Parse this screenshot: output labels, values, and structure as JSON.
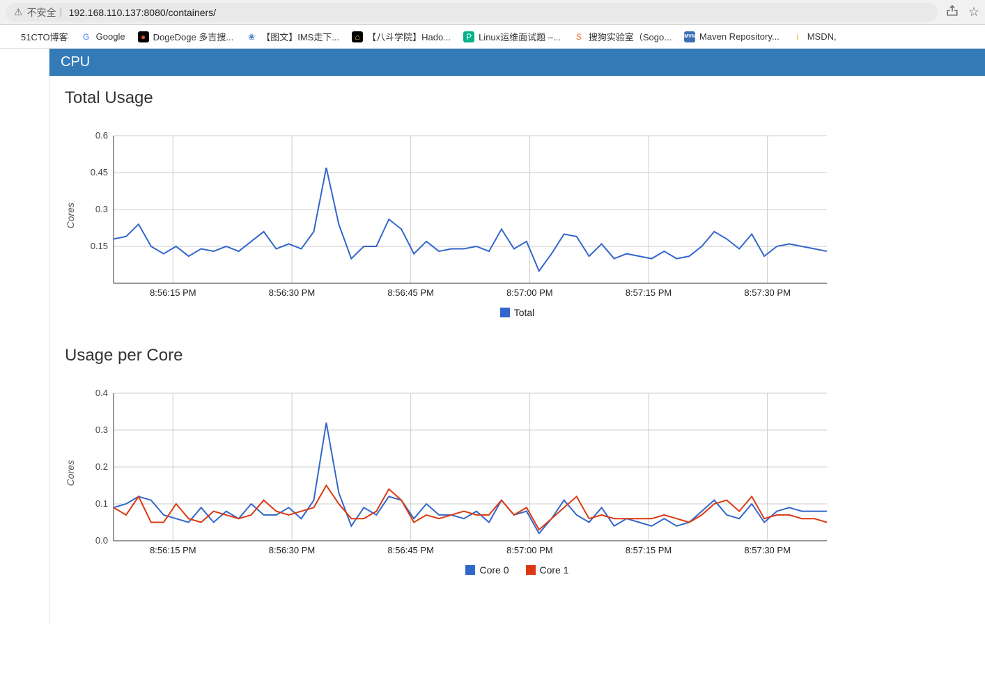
{
  "url_bar": {
    "warning_icon": "⚠",
    "insecure_label": "不安全",
    "url": "192.168.110.137:8080/containers/",
    "share_icon": "⇪",
    "star_icon": "☆"
  },
  "bookmarks": [
    {
      "label": "51CTO博客",
      "favicon_text": "",
      "favicon_bg": "",
      "favicon_color": "#333"
    },
    {
      "label": "Google",
      "favicon_text": "G",
      "favicon_bg": "#fff",
      "favicon_color": "#4285f4"
    },
    {
      "label": "DogeDoge 多吉搜...",
      "favicon_text": "●",
      "favicon_bg": "#000",
      "favicon_color": "#d94f2a"
    },
    {
      "label": "【图文】IMS走下...",
      "favicon_text": "❀",
      "favicon_bg": "#fff",
      "favicon_color": "#3b7bd6"
    },
    {
      "label": "【八斗学院】Hado...",
      "favicon_text": "⌂",
      "favicon_bg": "#000",
      "favicon_color": "#e6c14c"
    },
    {
      "label": "Linux运维面试题 –...",
      "favicon_text": "P",
      "favicon_bg": "#00b388",
      "favicon_color": "#fff"
    },
    {
      "label": "搜狗实验室（Sogo...",
      "favicon_text": "S",
      "favicon_bg": "#fff",
      "favicon_color": "#fd6c21"
    },
    {
      "label": "Maven Repository...",
      "favicon_text": "MVN",
      "favicon_bg": "#3b6fb6",
      "favicon_color": "#fff"
    },
    {
      "label": "MSDN,",
      "favicon_text": "i",
      "favicon_bg": "#fff",
      "favicon_color": "#f5a623"
    }
  ],
  "section_header": "CPU",
  "chart1": {
    "title": "Total Usage",
    "type": "line",
    "y_label": "Cores",
    "ylim": [
      0,
      0.6
    ],
    "yticks": [
      0.15,
      0.3,
      0.45,
      0.6
    ],
    "xticks": [
      "8:56:15 PM",
      "8:56:30 PM",
      "8:56:45 PM",
      "8:57:00 PM",
      "8:57:15 PM",
      "8:57:30 PM"
    ],
    "grid_color": "#cccccc",
    "axis_color": "#333333",
    "background_color": "#ffffff",
    "tick_fontsize": 13,
    "line_width": 2,
    "series": [
      {
        "name": "Total",
        "color": "#3366cc",
        "values": [
          0.18,
          0.19,
          0.24,
          0.15,
          0.12,
          0.15,
          0.11,
          0.14,
          0.13,
          0.15,
          0.13,
          0.17,
          0.21,
          0.14,
          0.16,
          0.14,
          0.21,
          0.47,
          0.24,
          0.1,
          0.15,
          0.15,
          0.26,
          0.22,
          0.12,
          0.17,
          0.13,
          0.14,
          0.14,
          0.15,
          0.13,
          0.22,
          0.14,
          0.17,
          0.05,
          0.12,
          0.2,
          0.19,
          0.11,
          0.16,
          0.1,
          0.12,
          0.11,
          0.1,
          0.13,
          0.1,
          0.11,
          0.15,
          0.21,
          0.18,
          0.14,
          0.2,
          0.11,
          0.15,
          0.16,
          0.15,
          0.14,
          0.13
        ]
      }
    ],
    "legend": [
      {
        "label": "Total",
        "color": "#3366cc"
      }
    ]
  },
  "chart2": {
    "title": "Usage per Core",
    "type": "line",
    "y_label": "Cores",
    "ylim": [
      0.0,
      0.4
    ],
    "yticks": [
      0.0,
      0.1,
      0.2,
      0.3,
      0.4
    ],
    "xticks": [
      "8:56:15 PM",
      "8:56:30 PM",
      "8:56:45 PM",
      "8:57:00 PM",
      "8:57:15 PM",
      "8:57:30 PM"
    ],
    "grid_color": "#cccccc",
    "axis_color": "#333333",
    "background_color": "#ffffff",
    "tick_fontsize": 13,
    "line_width": 2,
    "series": [
      {
        "name": "Core 0",
        "color": "#3366cc",
        "values": [
          0.09,
          0.1,
          0.12,
          0.11,
          0.07,
          0.06,
          0.05,
          0.09,
          0.05,
          0.08,
          0.06,
          0.1,
          0.07,
          0.07,
          0.09,
          0.06,
          0.11,
          0.32,
          0.13,
          0.04,
          0.09,
          0.07,
          0.12,
          0.11,
          0.06,
          0.1,
          0.07,
          0.07,
          0.06,
          0.08,
          0.05,
          0.11,
          0.07,
          0.08,
          0.02,
          0.06,
          0.11,
          0.07,
          0.05,
          0.09,
          0.04,
          0.06,
          0.05,
          0.04,
          0.06,
          0.04,
          0.05,
          0.08,
          0.11,
          0.07,
          0.06,
          0.1,
          0.05,
          0.08,
          0.09,
          0.08,
          0.08,
          0.08
        ]
      },
      {
        "name": "Core 1",
        "color": "#dc3912",
        "values": [
          0.09,
          0.07,
          0.12,
          0.05,
          0.05,
          0.1,
          0.06,
          0.05,
          0.08,
          0.07,
          0.06,
          0.07,
          0.11,
          0.08,
          0.07,
          0.08,
          0.09,
          0.15,
          0.1,
          0.06,
          0.06,
          0.08,
          0.14,
          0.11,
          0.05,
          0.07,
          0.06,
          0.07,
          0.08,
          0.07,
          0.07,
          0.11,
          0.07,
          0.09,
          0.03,
          0.06,
          0.09,
          0.12,
          0.06,
          0.07,
          0.06,
          0.06,
          0.06,
          0.06,
          0.07,
          0.06,
          0.05,
          0.07,
          0.1,
          0.11,
          0.08,
          0.12,
          0.06,
          0.07,
          0.07,
          0.06,
          0.06,
          0.05
        ]
      }
    ],
    "legend": [
      {
        "label": "Core 0",
        "color": "#3366cc"
      },
      {
        "label": "Core 1",
        "color": "#dc3912"
      }
    ]
  }
}
